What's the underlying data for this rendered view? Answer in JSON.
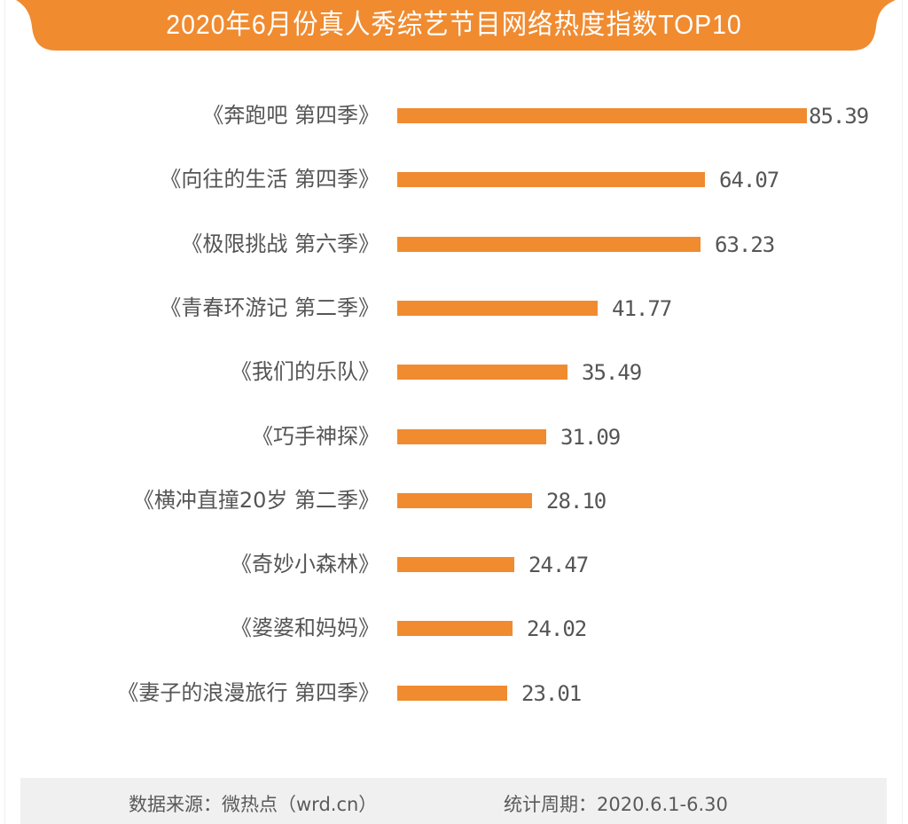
{
  "header": {
    "title": "2020年6月份真人秀综艺节目网络热度指数TOP10",
    "banner_color": "#F08B30"
  },
  "footer": {
    "source": "数据来源：微热点（wrd.cn）",
    "period": "统计周期：2020.6.1-6.30"
  },
  "chart_data": {
    "type": "bar",
    "orientation": "horizontal",
    "title": "2020年6月份真人秀综艺节目网络热度指数TOP10",
    "xlabel": "",
    "ylabel": "",
    "grid": false,
    "legend": null,
    "bar_color": "#F08B30",
    "categories": [
      "《奔跑吧 第四季》",
      "《向往的生活 第四季》",
      "《极限挑战 第六季》",
      "《青春环游记 第二季》",
      "《我们的乐队》",
      "《巧手神探》",
      "《横冲直撞20岁 第二季》",
      "《奇妙小森林》",
      "《婆婆和妈妈》",
      "《妻子的浪漫旅行 第四季》"
    ],
    "values": [
      85.39,
      64.07,
      63.23,
      41.77,
      35.49,
      31.09,
      28.1,
      24.47,
      24.02,
      23.01
    ],
    "value_labels": [
      "85.39",
      "64.07",
      "63.23",
      "41.77",
      "35.49",
      "31.09",
      "28.10",
      "24.47",
      "24.02",
      "23.01"
    ],
    "annotations": [
      "数据来源：微热点（wrd.cn）",
      "统计周期：2020.6.1-6.30"
    ]
  }
}
